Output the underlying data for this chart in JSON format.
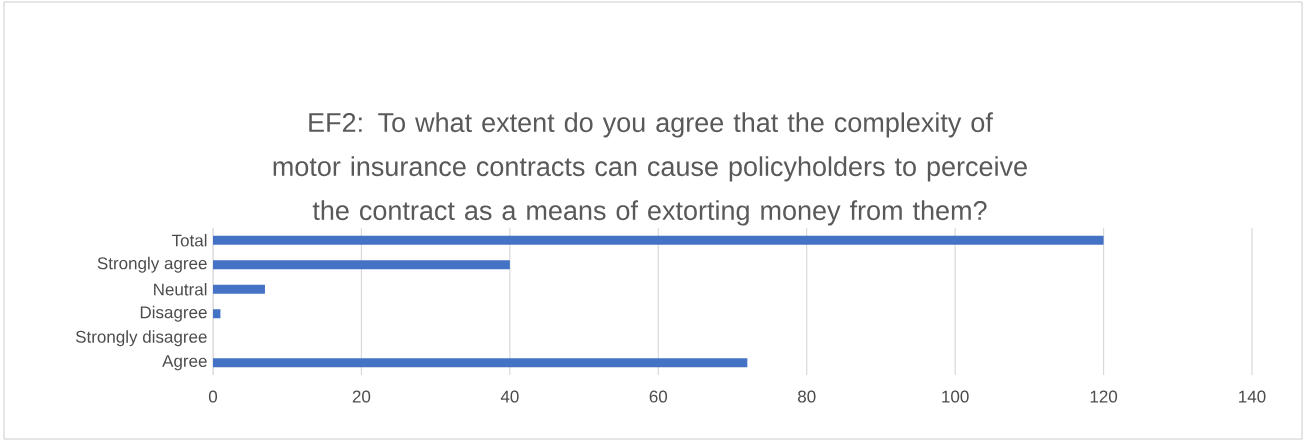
{
  "chart_data": {
    "type": "bar",
    "orientation": "horizontal",
    "title": "EF2: To what extent do you agree that the complexity of motor insurance contracts can cause policyholders to perceive the contract as a means of extorting money from them?",
    "categories": [
      "Total",
      "Strongly agree",
      "Neutral",
      "Disagree",
      "Strongly disagree",
      "Agree"
    ],
    "values": [
      120,
      40,
      7,
      1,
      0,
      72
    ],
    "color": "#4472c4",
    "xlim": [
      0,
      140
    ],
    "xticks": [
      0,
      20,
      40,
      60,
      80,
      100,
      120,
      140
    ],
    "grid": "x"
  }
}
